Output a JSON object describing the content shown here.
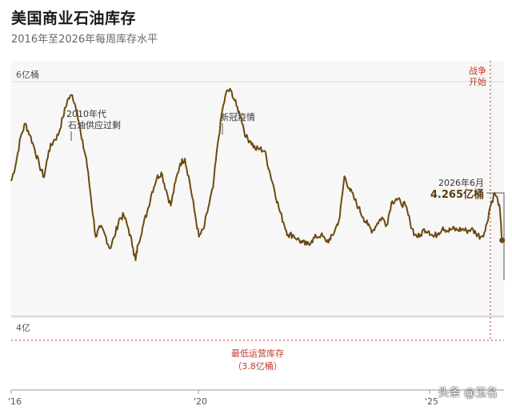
{
  "header": {
    "title": "美国商业石油库存",
    "subtitle": "2016年至2026年每周库存水平"
  },
  "colors": {
    "line": "#6b4a10",
    "accent_red": "#c0392b",
    "plot_bg": "#f7f7f7",
    "text": "#333333"
  },
  "annotations": {
    "war": [
      "战争",
      "开始"
    ],
    "glut": [
      "2010年代",
      "石油供应过剩"
    ],
    "covid": "新冠疫情",
    "latest_date": "2026年6月",
    "latest_value": "4.265亿桶",
    "min_label": "最低运营库存",
    "min_value": "（3.8亿桶）"
  },
  "watermark": "头条 @玉名",
  "chart_data": {
    "type": "line",
    "title": "美国商业石油库存",
    "subtitle": "2016年至2026年每周库存水平",
    "y_ticks": [
      {
        "value": 600,
        "label": "6亿桶"
      },
      {
        "value": 400,
        "label": "4亿"
      }
    ],
    "x_ticks": [
      {
        "value": 2016,
        "label": "'16"
      },
      {
        "value": 2020,
        "label": "'20"
      },
      {
        "value": 2025,
        "label": "'25"
      }
    ],
    "xlim": [
      2016,
      2026.5
    ],
    "ylim": [
      325,
      610
    ],
    "reference_line": {
      "value": 380,
      "label": "最低运营库存（3.8亿桶）"
    },
    "event_line": {
      "x": 2026.15,
      "label": "战争开始"
    },
    "series": [
      {
        "points": [
          [
            2016.0,
            487
          ],
          [
            2016.1,
            505
          ],
          [
            2016.2,
            532
          ],
          [
            2016.3,
            546
          ],
          [
            2016.4,
            534
          ],
          [
            2016.5,
            520
          ],
          [
            2016.6,
            503
          ],
          [
            2016.7,
            491
          ],
          [
            2016.8,
            518
          ],
          [
            2016.9,
            528
          ],
          [
            2017.0,
            534
          ],
          [
            2017.1,
            552
          ],
          [
            2017.2,
            570
          ],
          [
            2017.3,
            575
          ],
          [
            2017.4,
            560
          ],
          [
            2017.5,
            530
          ],
          [
            2017.6,
            510
          ],
          [
            2017.7,
            470
          ],
          [
            2017.8,
            430
          ],
          [
            2017.9,
            440
          ],
          [
            2018.0,
            432
          ],
          [
            2018.1,
            418
          ],
          [
            2018.2,
            430
          ],
          [
            2018.3,
            448
          ],
          [
            2018.4,
            452
          ],
          [
            2018.5,
            438
          ],
          [
            2018.6,
            418
          ],
          [
            2018.65,
            406
          ],
          [
            2018.7,
            422
          ],
          [
            2018.8,
            440
          ],
          [
            2018.9,
            456
          ],
          [
            2019.0,
            476
          ],
          [
            2019.1,
            490
          ],
          [
            2019.2,
            496
          ],
          [
            2019.3,
            478
          ],
          [
            2019.4,
            462
          ],
          [
            2019.5,
            486
          ],
          [
            2019.6,
            505
          ],
          [
            2019.7,
            510
          ],
          [
            2019.8,
            487
          ],
          [
            2019.9,
            458
          ],
          [
            2020.0,
            430
          ],
          [
            2020.1,
            438
          ],
          [
            2020.2,
            460
          ],
          [
            2020.3,
            480
          ],
          [
            2020.4,
            525
          ],
          [
            2020.5,
            560
          ],
          [
            2020.6,
            580
          ],
          [
            2020.7,
            578
          ],
          [
            2020.8,
            564
          ],
          [
            2020.9,
            552
          ],
          [
            2021.0,
            532
          ],
          [
            2021.1,
            528
          ],
          [
            2021.2,
            520
          ],
          [
            2021.3,
            520
          ],
          [
            2021.4,
            518
          ],
          [
            2021.5,
            498
          ],
          [
            2021.6,
            480
          ],
          [
            2021.7,
            460
          ],
          [
            2021.8,
            445
          ],
          [
            2021.9,
            432
          ],
          [
            2022.0,
            432
          ],
          [
            2022.1,
            428
          ],
          [
            2022.2,
            424
          ],
          [
            2022.3,
            422
          ],
          [
            2022.4,
            426
          ],
          [
            2022.5,
            430
          ],
          [
            2022.6,
            432
          ],
          [
            2022.7,
            426
          ],
          [
            2022.8,
            427
          ],
          [
            2022.9,
            437
          ],
          [
            2023.0,
            450
          ],
          [
            2023.1,
            492
          ],
          [
            2023.2,
            480
          ],
          [
            2023.3,
            470
          ],
          [
            2023.4,
            460
          ],
          [
            2023.5,
            450
          ],
          [
            2023.6,
            442
          ],
          [
            2023.7,
            436
          ],
          [
            2023.8,
            444
          ],
          [
            2023.9,
            450
          ],
          [
            2024.0,
            442
          ],
          [
            2024.1,
            465
          ],
          [
            2024.2,
            469
          ],
          [
            2024.3,
            465
          ],
          [
            2024.4,
            462
          ],
          [
            2024.5,
            445
          ],
          [
            2024.6,
            432
          ],
          [
            2024.7,
            430
          ],
          [
            2024.8,
            438
          ],
          [
            2024.9,
            436
          ],
          [
            2025.0,
            430
          ],
          [
            2025.1,
            434
          ],
          [
            2025.2,
            440
          ],
          [
            2025.3,
            436
          ],
          [
            2025.4,
            438
          ],
          [
            2025.5,
            437
          ],
          [
            2025.6,
            438
          ],
          [
            2025.7,
            436
          ],
          [
            2025.8,
            438
          ],
          [
            2025.9,
            434
          ],
          [
            2026.0,
            430
          ],
          [
            2026.1,
            436
          ],
          [
            2026.2,
            460
          ],
          [
            2026.3,
            475
          ],
          [
            2026.4,
            463
          ],
          [
            2026.46,
            426.5
          ]
        ]
      }
    ],
    "latest_point": {
      "x": 2026.46,
      "y": 426.5
    }
  }
}
